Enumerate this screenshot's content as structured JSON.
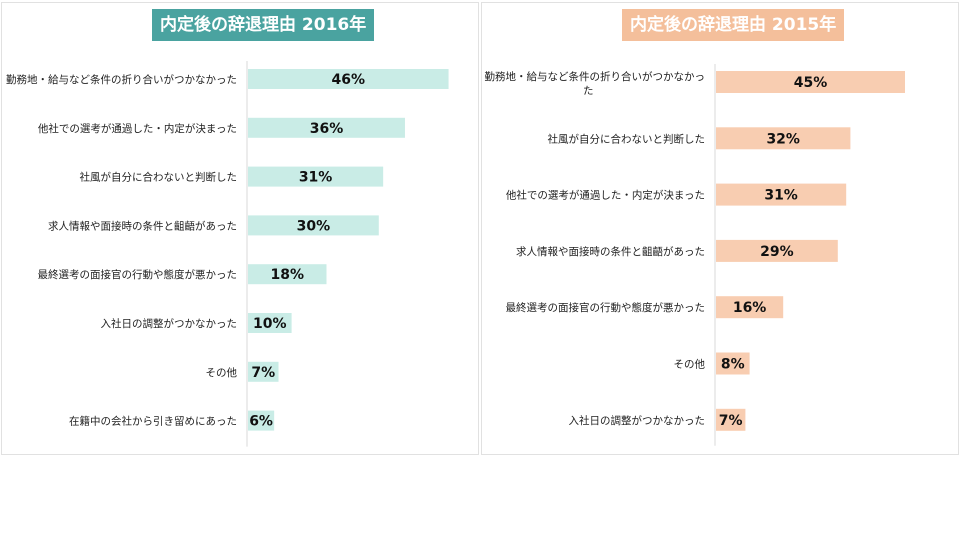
{
  "chart_data": [
    {
      "type": "bar",
      "orientation": "horizontal",
      "title": "内定後の辞退理由 2016年",
      "title_bg": "#4aa3a0",
      "bar_color": "#c9ece6",
      "unit": "%",
      "categories": [
        "勤務地・給与など条件の折り合いがつかなかった",
        "他社での選考が通過した・内定が決まった",
        "社風が自分に合わないと判断した",
        "求人情報や面接時の条件と齟齬があった",
        "最終選考の面接官の行動や態度が悪かった",
        "入社日の調整がつかなかった",
        "その他",
        "在籍中の会社から引き留めにあった"
      ],
      "values": [
        46,
        36,
        31,
        30,
        18,
        10,
        7,
        6
      ],
      "xlim": [
        0,
        50
      ]
    },
    {
      "type": "bar",
      "orientation": "horizontal",
      "title": "内定後の辞退理由 2015年",
      "title_bg": "#f4bf9b",
      "bar_color": "#f8cdb1",
      "unit": "%",
      "categories": [
        "勤務地・給与など条件の折り合いがつかなかった",
        "社風が自分に合わないと判断した",
        "他社での選考が通過した・内定が決まった",
        "求人情報や面接時の条件と齟齬があった",
        "最終選考の面接官の行動や態度が悪かった",
        "その他",
        "入社日の調整がつかなかった"
      ],
      "values": [
        45,
        32,
        31,
        29,
        16,
        8,
        7
      ],
      "xlim": [
        0,
        50
      ]
    }
  ]
}
